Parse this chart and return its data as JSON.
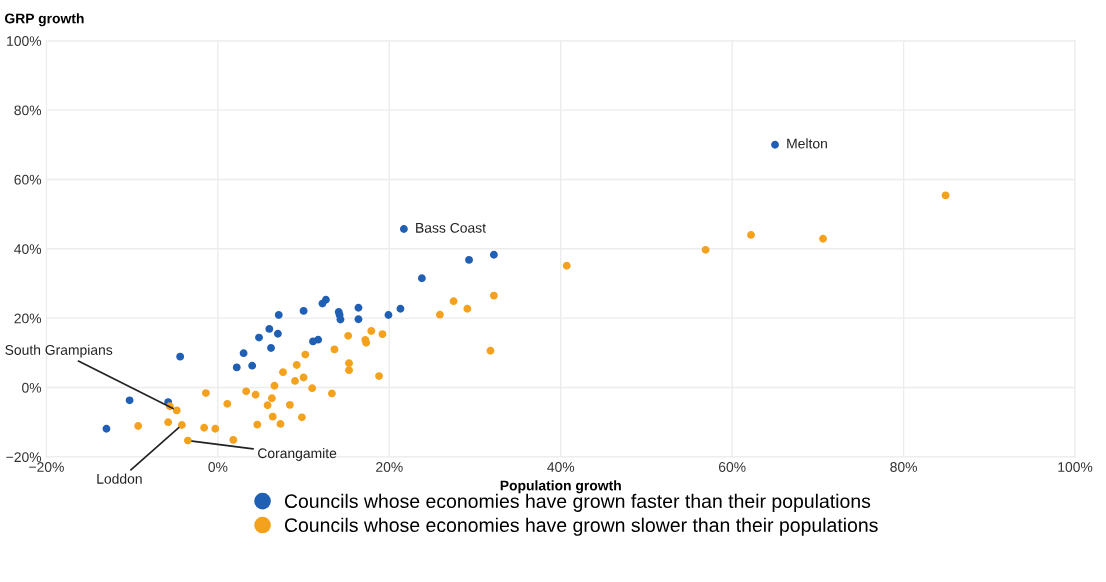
{
  "chart_data": {
    "type": "scatter",
    "xlabel": "Population growth",
    "ylabel": "GRP growth",
    "xlim": [
      -20,
      100
    ],
    "ylim": [
      -20,
      100
    ],
    "xticks": [
      {
        "value": -20,
        "label": "−20%"
      },
      {
        "value": 0,
        "label": "0%"
      },
      {
        "value": 20,
        "label": "20%"
      },
      {
        "value": 40,
        "label": "40%"
      },
      {
        "value": 60,
        "label": "60%"
      },
      {
        "value": 80,
        "label": "80%"
      },
      {
        "value": 100,
        "label": "100%"
      }
    ],
    "yticks": [
      {
        "value": -20,
        "label": "−20%"
      },
      {
        "value": 0,
        "label": "0%"
      },
      {
        "value": 20,
        "label": "20%"
      },
      {
        "value": 40,
        "label": "40%"
      },
      {
        "value": 60,
        "label": "60%"
      },
      {
        "value": 80,
        "label": "80%"
      },
      {
        "value": 100,
        "label": "100%"
      }
    ],
    "grid": true,
    "legend": "bottom",
    "marker": "circle",
    "series": [
      {
        "name": "Councils whose economies have grown faster than their populations",
        "color": "#1f5fb4",
        "x": [
          65.0,
          21.7,
          29.3,
          32.2,
          23.8,
          12.6,
          12.2,
          10.0,
          7.1,
          14.1,
          14.2,
          14.3,
          16.4,
          16.4,
          19.9,
          21.3,
          6.0,
          7.0,
          4.8,
          6.2,
          11.1,
          11.7,
          3.0,
          2.2,
          4.0,
          -4.4,
          -10.3,
          -5.8,
          -13.0
        ],
        "values": [
          70.0,
          45.7,
          36.8,
          38.3,
          31.5,
          25.3,
          24.2,
          22.1,
          20.9,
          21.8,
          20.9,
          19.6,
          23.0,
          19.7,
          20.9,
          22.7,
          16.9,
          15.5,
          14.4,
          11.4,
          13.3,
          13.8,
          9.9,
          5.8,
          6.3,
          8.9,
          -3.7,
          -4.2,
          -11.9
        ]
      },
      {
        "name": "Councils whose economies have grown slower than their populations",
        "color": "#f4a21d",
        "x": [
          32.2,
          27.5,
          29.1,
          25.9,
          31.8,
          15.2,
          17.9,
          19.2,
          17.2,
          17.3,
          13.6,
          10.2,
          9.2,
          7.6,
          15.3,
          15.3,
          18.8,
          10.0,
          9.0,
          6.6,
          11.0,
          13.3,
          3.3,
          4.4,
          1.1,
          6.3,
          5.8,
          8.4,
          6.4,
          9.8,
          4.6,
          7.3,
          40.7,
          56.9,
          62.2,
          70.6,
          84.9,
          -1.4,
          1.8,
          -0.3,
          -1.6,
          -3.5,
          -4.2,
          -5.8,
          -4.8,
          -5.6,
          -9.3
        ],
        "values": [
          26.5,
          24.9,
          22.7,
          21.0,
          10.6,
          14.9,
          16.3,
          15.4,
          13.7,
          12.9,
          11.0,
          9.5,
          6.5,
          4.4,
          7.0,
          5.0,
          3.3,
          2.9,
          1.9,
          0.5,
          -0.2,
          -1.7,
          -1.1,
          -2.1,
          -4.7,
          -3.1,
          -5.1,
          -5.0,
          -8.4,
          -8.6,
          -10.7,
          -10.5,
          35.1,
          39.7,
          44.0,
          42.9,
          55.4,
          -1.6,
          -15.1,
          -11.9,
          -11.6,
          -15.3,
          -10.8,
          -10.0,
          -6.6,
          -5.4,
          -11.1
        ]
      }
    ],
    "annotations": [
      {
        "text": "Melton",
        "x": 65.0,
        "y": 70.0
      },
      {
        "text": "Bass Coast",
        "x": 21.7,
        "y": 45.7
      },
      {
        "text": "South Grampians",
        "x": -4.8,
        "y": -6.6
      },
      {
        "text": "Loddon",
        "x": -4.2,
        "y": -10.8
      },
      {
        "text": "Corangamite",
        "x": -3.5,
        "y": -15.3
      }
    ]
  }
}
